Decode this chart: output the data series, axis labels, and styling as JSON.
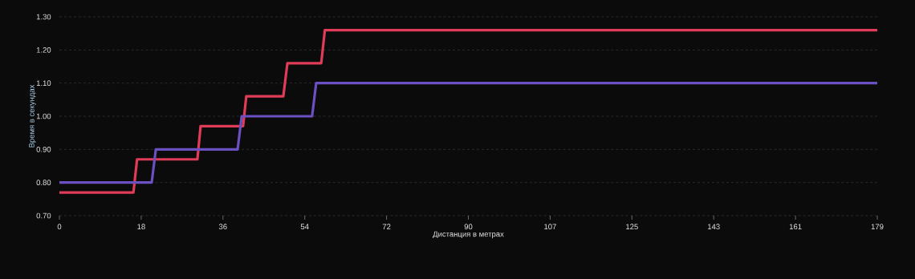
{
  "chart_data": {
    "type": "line",
    "xlabel": "Дистанция в метрах",
    "ylabel": "Время в секундах",
    "xlim": [
      0,
      179
    ],
    "ylim": [
      0.7,
      1.3
    ],
    "xticks": [
      0,
      {
        "value": 17.9,
        "label": "18"
      },
      {
        "value": 35.8,
        "label": "36"
      },
      {
        "value": 53.7,
        "label": "54"
      },
      {
        "value": 71.6,
        "label": "72"
      },
      {
        "value": 89.5,
        "label": "90"
      },
      {
        "value": 107.4,
        "label": "107"
      },
      {
        "value": 125.3,
        "label": "125"
      },
      {
        "value": 143.2,
        "label": "143"
      },
      {
        "value": 161.1,
        "label": "161"
      },
      179
    ],
    "yticks": [
      {
        "value": 0.7,
        "label": "0.70"
      },
      {
        "value": 0.8,
        "label": "0.80"
      },
      {
        "value": 0.9,
        "label": "0.90"
      },
      {
        "value": 1.0,
        "label": "1.00"
      },
      {
        "value": 1.1,
        "label": "1.10"
      },
      {
        "value": 1.2,
        "label": "1.20"
      },
      {
        "value": 1.3,
        "label": "1.30"
      }
    ],
    "grid": "y",
    "marker": "none",
    "line_style": "solid",
    "legend": false,
    "series": [
      {
        "color": "#e03c58",
        "x": [
          0,
          16.2,
          17.0,
          30.2,
          30.9,
          40.2,
          40.9,
          49.0,
          49.9,
          57.3,
          58.1,
          179
        ],
        "values": [
          0.77,
          0.77,
          0.87,
          0.87,
          0.97,
          0.97,
          1.06,
          1.06,
          1.16,
          1.16,
          1.26,
          1.26
        ]
      },
      {
        "color": "#6a50c0",
        "x": [
          0,
          20.2,
          21.1,
          39.0,
          39.9,
          55.3,
          56.2,
          179
        ],
        "values": [
          0.8,
          0.8,
          0.9,
          0.9,
          1.0,
          1.0,
          1.1,
          1.1
        ]
      }
    ]
  }
}
